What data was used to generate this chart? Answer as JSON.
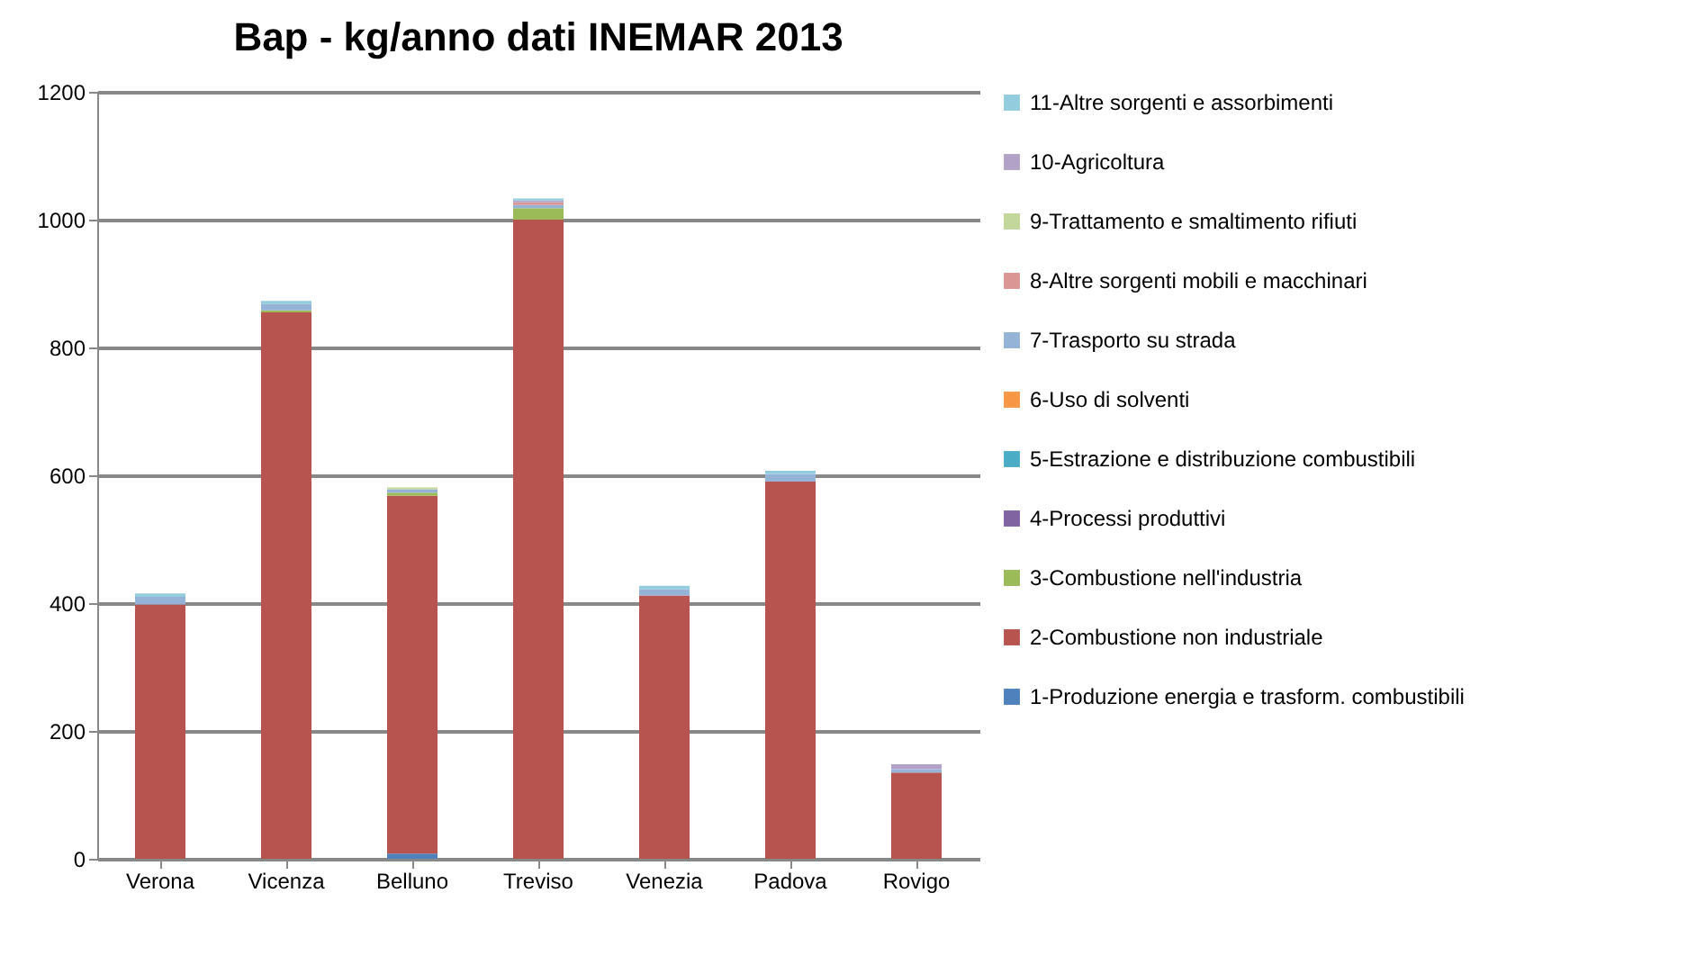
{
  "chart_data": {
    "type": "bar",
    "title": "Bap - kg/anno dati INEMAR 2013",
    "categories": [
      "Verona",
      "Vicenza",
      "Belluno",
      "Treviso",
      "Venezia",
      "Padova",
      "Rovigo"
    ],
    "stacked": true,
    "grid": "y",
    "legend": "right",
    "ylim": [
      0,
      1200
    ],
    "yticks": [
      0,
      200,
      400,
      600,
      800,
      1000,
      1200
    ],
    "series": [
      {
        "name": "1-Produzione energia e trasform. combustibili",
        "color": "#4f81bd",
        "values": [
          0,
          0,
          8,
          0,
          0,
          0,
          0
        ]
      },
      {
        "name": "2-Combustione non industriale",
        "color": "#b85450",
        "values": [
          398,
          855,
          560,
          1000,
          412,
          590,
          135
        ]
      },
      {
        "name": "3-Combustione nell'industria",
        "color": "#9bbb59",
        "values": [
          0,
          3,
          5,
          18,
          0,
          0,
          0
        ]
      },
      {
        "name": "4-Processi produttivi",
        "color": "#8064a2",
        "values": [
          0,
          0,
          0,
          0,
          0,
          0,
          0
        ]
      },
      {
        "name": "5-Estrazione e distribuzione combustibili",
        "color": "#4bacc6",
        "values": [
          0,
          0,
          0,
          0,
          0,
          0,
          0
        ]
      },
      {
        "name": "6-Uso di solventi",
        "color": "#f79646",
        "values": [
          0,
          0,
          0,
          0,
          0,
          0,
          0
        ]
      },
      {
        "name": "7-Trasporto su strada",
        "color": "#95b3d7",
        "values": [
          12,
          10,
          5,
          5,
          10,
          12,
          5
        ]
      },
      {
        "name": "8-Altre sorgenti mobili e macchinari",
        "color": "#d99694",
        "values": [
          0,
          0,
          0,
          4,
          0,
          0,
          0
        ]
      },
      {
        "name": "9-Trattamento e smaltimento  rifiuti",
        "color": "#c3d69b",
        "values": [
          0,
          0,
          3,
          0,
          0,
          0,
          0
        ]
      },
      {
        "name": "10-Agricoltura",
        "color": "#b3a2c7",
        "values": [
          0,
          0,
          0,
          3,
          0,
          0,
          8
        ]
      },
      {
        "name": "11-Altre sorgenti e assorbimenti",
        "color": "#93cddd",
        "values": [
          5,
          5,
          0,
          3,
          5,
          5,
          0
        ]
      }
    ]
  }
}
